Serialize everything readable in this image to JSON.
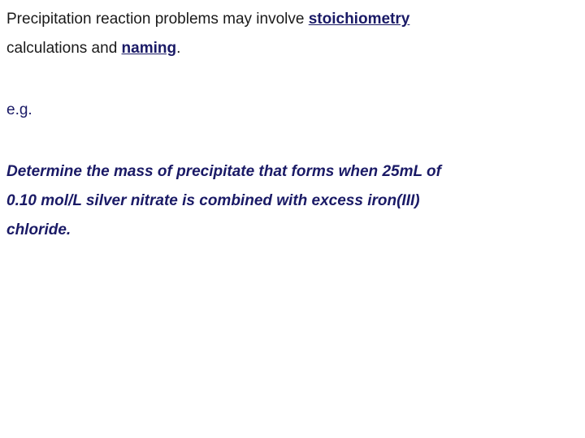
{
  "intro": {
    "pre1": "Precipitation reaction problems may involve ",
    "kw1": "stoichiometry",
    "pre2": "calculations and ",
    "kw2": "naming",
    "post2": "."
  },
  "eg_label": "e.g.",
  "question": {
    "l1": "Determine the mass of precipitate that forms when 25mL of",
    "l2": "0.10 mol/L silver nitrate is combined with excess iron(III)",
    "l3": "chloride."
  },
  "colors": {
    "text_primary": "#1a1a66",
    "text_black": "#1a1a1a",
    "background": "#ffffff"
  },
  "typography": {
    "font_family": "Arial",
    "font_size_pt": 14,
    "line_height": 1.9
  }
}
